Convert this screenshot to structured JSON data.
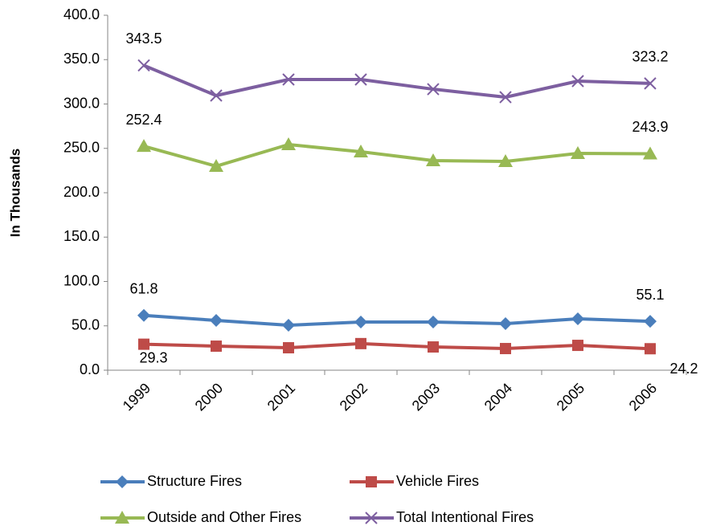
{
  "chart_data": {
    "type": "line",
    "y_label": "In Thousands",
    "categories": [
      "1999",
      "2000",
      "2001",
      "2002",
      "2003",
      "2004",
      "2005",
      "2006"
    ],
    "series": [
      {
        "name": "Structure Fires",
        "color": "#4a7ebb",
        "marker": "diamond",
        "values": [
          61.8,
          56.1,
          50.7,
          54.3,
          54.3,
          52.5,
          57.9,
          55.1
        ],
        "value_labels": [
          "61.8",
          null,
          null,
          null,
          null,
          null,
          null,
          "55.1"
        ]
      },
      {
        "name": "Vehicle Fires",
        "color": "#be4b48",
        "marker": "square",
        "values": [
          29.3,
          27.1,
          25.3,
          30.0,
          26.2,
          24.4,
          28.0,
          24.2
        ],
        "value_labels": [
          "29.3",
          null,
          null,
          null,
          null,
          null,
          null,
          "24.2"
        ]
      },
      {
        "name": "Outside and Other Fires",
        "color": "#98b954",
        "marker": "triangle",
        "values": [
          252.4,
          229.9,
          254.3,
          246.2,
          236.2,
          235.3,
          244.3,
          243.9
        ],
        "value_labels": [
          "252.4",
          null,
          null,
          null,
          null,
          null,
          null,
          "243.9"
        ]
      },
      {
        "name": "Total Intentional  Fires",
        "color": "#7d5fa0",
        "marker": "x",
        "values": [
          343.5,
          309.5,
          327.6,
          327.6,
          316.7,
          307.7,
          325.8,
          323.2
        ],
        "value_labels": [
          "343.5",
          null,
          null,
          null,
          null,
          null,
          null,
          "323.2"
        ]
      }
    ],
    "ylim": [
      0,
      400
    ],
    "yticks": [
      {
        "value": 0,
        "label": "0.0"
      },
      {
        "value": 50,
        "label": "50.0"
      },
      {
        "value": 100,
        "label": "100.0"
      },
      {
        "value": 150,
        "label": "150.0"
      },
      {
        "value": 200,
        "label": "200.0"
      },
      {
        "value": 250,
        "label": "250.0"
      },
      {
        "value": 300,
        "label": "300.0"
      },
      {
        "value": 350,
        "label": "350.0"
      },
      {
        "value": 400,
        "label": "400.0"
      }
    ],
    "grid": false
  }
}
